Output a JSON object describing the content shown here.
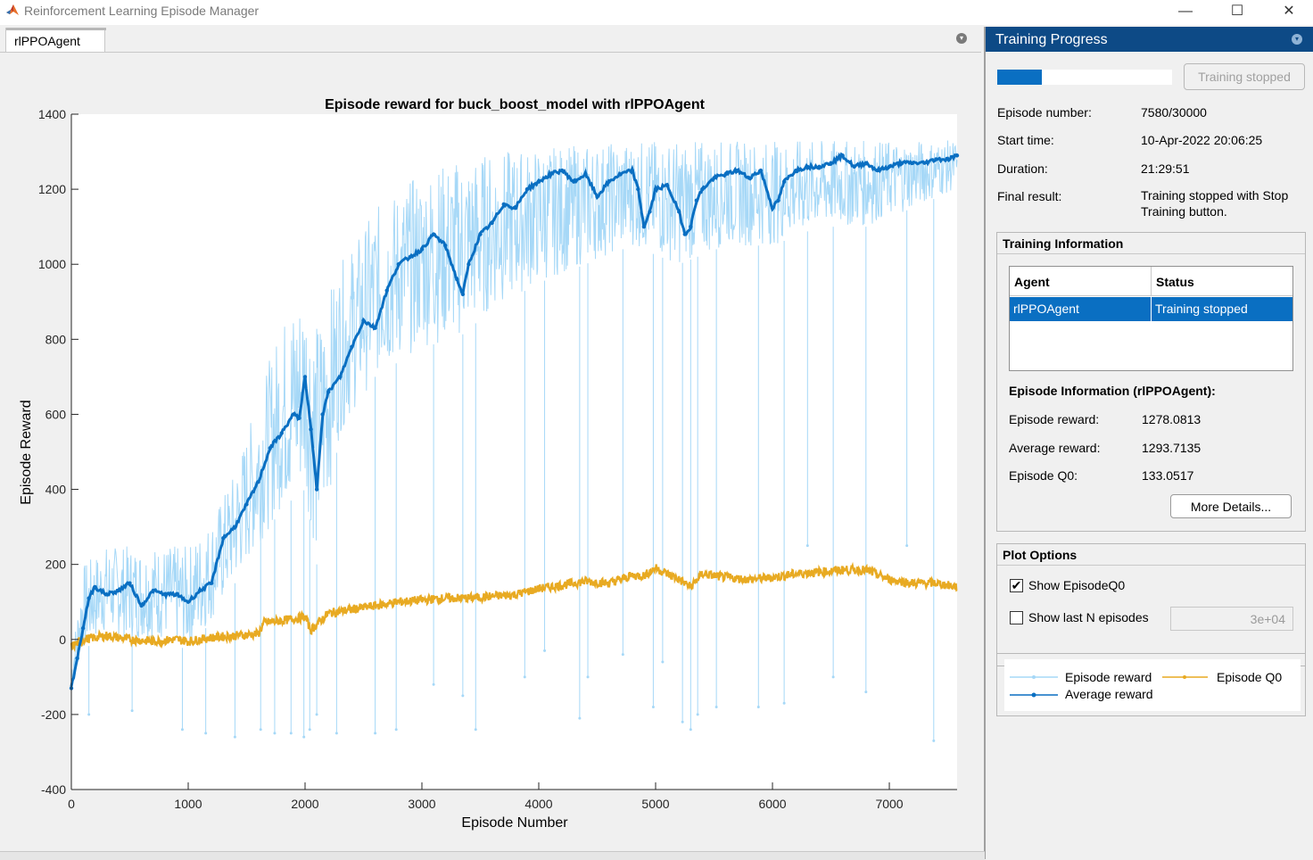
{
  "window": {
    "title": "Reinforcement Learning Episode Manager",
    "minimize": "—",
    "maximize": "☐",
    "close": "✕"
  },
  "tab": {
    "label": "rlPPOAgent"
  },
  "right_panel": {
    "header": "Training Progress",
    "progress_fraction": 0.2527,
    "stop_button": "Training stopped",
    "summary": [
      {
        "label": "Episode number:",
        "value": "7580/30000"
      },
      {
        "label": "Start time:",
        "value": "10-Apr-2022 20:06:25"
      },
      {
        "label": "Duration:",
        "value": "21:29:51"
      },
      {
        "label": "Final result:",
        "value": "Training stopped with Stop Training button."
      }
    ],
    "training_information": {
      "title": "Training Information",
      "columns": [
        "Agent",
        "Status"
      ],
      "rows": [
        {
          "agent": "rlPPOAgent",
          "status": "Training stopped"
        }
      ]
    },
    "episode_information": {
      "title": "Episode Information (rlPPOAgent):",
      "items": [
        {
          "label": "Episode reward:",
          "value": "1278.0813"
        },
        {
          "label": "Average reward:",
          "value": "1293.7135"
        },
        {
          "label": "Episode Q0:",
          "value": "133.0517"
        }
      ],
      "more_button": "More Details..."
    },
    "plot_options": {
      "title": "Plot Options",
      "show_q0_label": "Show EpisodeQ0",
      "show_q0_checked": true,
      "show_last_n_label": "Show last N episodes",
      "show_last_n_checked": false,
      "n_value": "3e+04"
    },
    "legend": {
      "episode_reward": "Episode reward",
      "average_reward": "Average reward",
      "episode_q0": "Episode Q0"
    }
  },
  "colors": {
    "episode_reward": "#a6d8f7",
    "average_reward": "#0a6fc2",
    "episode_q0": "#e8aa22",
    "header_bg": "#0d4a86"
  },
  "chart_data": {
    "type": "line",
    "title": "Episode reward for buck_boost_model with rlPPOAgent",
    "xlabel": "Episode Number",
    "ylabel": "Episode Reward",
    "xlim": [
      0,
      7580
    ],
    "ylim": [
      -400,
      1400
    ],
    "x_ticks": [
      0,
      1000,
      2000,
      3000,
      4000,
      5000,
      6000,
      7000
    ],
    "y_ticks": [
      -400,
      -200,
      0,
      200,
      400,
      600,
      800,
      1000,
      1200,
      1400
    ],
    "grid": false,
    "series": [
      {
        "name": "Episode reward",
        "band_x": [
          0,
          100,
          300,
          500,
          800,
          1000,
          1200,
          1400,
          1600,
          1800,
          2000,
          2100,
          2300,
          2600,
          3000,
          3300,
          3600,
          4000,
          4400,
          4800,
          5200,
          5600,
          6000,
          6400,
          6800,
          7200,
          7580
        ],
        "band_low": [
          -140,
          -30,
          20,
          0,
          0,
          -30,
          50,
          150,
          250,
          350,
          400,
          200,
          550,
          700,
          780,
          800,
          880,
          950,
          1000,
          1050,
          1000,
          1050,
          1050,
          1100,
          1100,
          1150,
          1200
        ],
        "band_high": [
          -50,
          200,
          250,
          250,
          250,
          250,
          320,
          450,
          650,
          850,
          950,
          850,
          1000,
          1150,
          1250,
          1280,
          1300,
          1310,
          1320,
          1330,
          1330,
          1330,
          1330,
          1330,
          1330,
          1330,
          1330
        ],
        "dips": [
          [
            150,
            -200
          ],
          [
            520,
            -190
          ],
          [
            950,
            -240
          ],
          [
            1150,
            -250
          ],
          [
            1400,
            -260
          ],
          [
            1620,
            -240
          ],
          [
            1740,
            -250
          ],
          [
            1880,
            -250
          ],
          [
            1990,
            -260
          ],
          [
            2040,
            -240
          ],
          [
            2100,
            -200
          ],
          [
            2270,
            -250
          ],
          [
            2600,
            -250
          ],
          [
            2780,
            -240
          ],
          [
            3100,
            -120
          ],
          [
            3350,
            -150
          ],
          [
            3460,
            -240
          ],
          [
            3880,
            -100
          ],
          [
            4050,
            -30
          ],
          [
            4350,
            -210
          ],
          [
            4420,
            -100
          ],
          [
            4720,
            -40
          ],
          [
            4980,
            -180
          ],
          [
            5060,
            -60
          ],
          [
            5230,
            -220
          ],
          [
            5300,
            -240
          ],
          [
            5360,
            -200
          ],
          [
            5520,
            -180
          ],
          [
            5880,
            -180
          ],
          [
            6100,
            -170
          ],
          [
            6300,
            250
          ],
          [
            6520,
            -100
          ],
          [
            6800,
            -140
          ],
          [
            7150,
            250
          ],
          [
            7380,
            -270
          ]
        ]
      },
      {
        "name": "Average reward",
        "x": [
          0,
          50,
          100,
          150,
          200,
          300,
          400,
          500,
          600,
          700,
          800,
          900,
          1000,
          1100,
          1200,
          1300,
          1400,
          1500,
          1600,
          1700,
          1800,
          1900,
          1950,
          2000,
          2050,
          2100,
          2150,
          2200,
          2300,
          2400,
          2500,
          2600,
          2700,
          2800,
          2900,
          3000,
          3100,
          3200,
          3300,
          3350,
          3400,
          3500,
          3600,
          3700,
          3800,
          3900,
          4000,
          4100,
          4200,
          4300,
          4400,
          4500,
          4600,
          4700,
          4800,
          4850,
          4900,
          4950,
          5000,
          5100,
          5200,
          5250,
          5300,
          5350,
          5400,
          5500,
          5600,
          5700,
          5800,
          5900,
          6000,
          6050,
          6100,
          6200,
          6300,
          6400,
          6500,
          6600,
          6700,
          6800,
          6900,
          7000,
          7100,
          7200,
          7300,
          7400,
          7500,
          7580
        ],
        "values": [
          -130,
          -50,
          30,
          110,
          140,
          120,
          130,
          150,
          90,
          130,
          120,
          120,
          100,
          130,
          150,
          270,
          300,
          360,
          420,
          510,
          550,
          600,
          590,
          700,
          560,
          400,
          600,
          660,
          700,
          780,
          850,
          830,
          930,
          1000,
          1020,
          1040,
          1080,
          1050,
          960,
          920,
          1000,
          1080,
          1110,
          1160,
          1150,
          1200,
          1220,
          1240,
          1250,
          1220,
          1240,
          1180,
          1220,
          1240,
          1250,
          1200,
          1100,
          1140,
          1200,
          1210,
          1140,
          1080,
          1100,
          1170,
          1200,
          1230,
          1240,
          1250,
          1230,
          1250,
          1150,
          1170,
          1220,
          1250,
          1260,
          1260,
          1270,
          1290,
          1260,
          1270,
          1250,
          1260,
          1270,
          1270,
          1270,
          1280,
          1280,
          1290
        ]
      },
      {
        "name": "Episode Q0",
        "x": [
          0,
          100,
          300,
          500,
          700,
          900,
          1000,
          1200,
          1400,
          1600,
          1650,
          1800,
          2000,
          2050,
          2200,
          2400,
          2600,
          2800,
          3000,
          3200,
          3400,
          3600,
          3800,
          4000,
          4200,
          4400,
          4600,
          4800,
          4900,
          5000,
          5200,
          5300,
          5400,
          5600,
          5800,
          6000,
          6200,
          6400,
          6600,
          6800,
          7000,
          7200,
          7400,
          7580
        ],
        "values": [
          -20,
          0,
          10,
          0,
          -5,
          0,
          -5,
          5,
          10,
          15,
          45,
          50,
          60,
          25,
          70,
          80,
          90,
          100,
          105,
          110,
          110,
          115,
          120,
          135,
          145,
          155,
          150,
          170,
          170,
          190,
          160,
          140,
          175,
          165,
          160,
          165,
          175,
          180,
          185,
          185,
          160,
          150,
          150,
          140
        ]
      }
    ]
  }
}
